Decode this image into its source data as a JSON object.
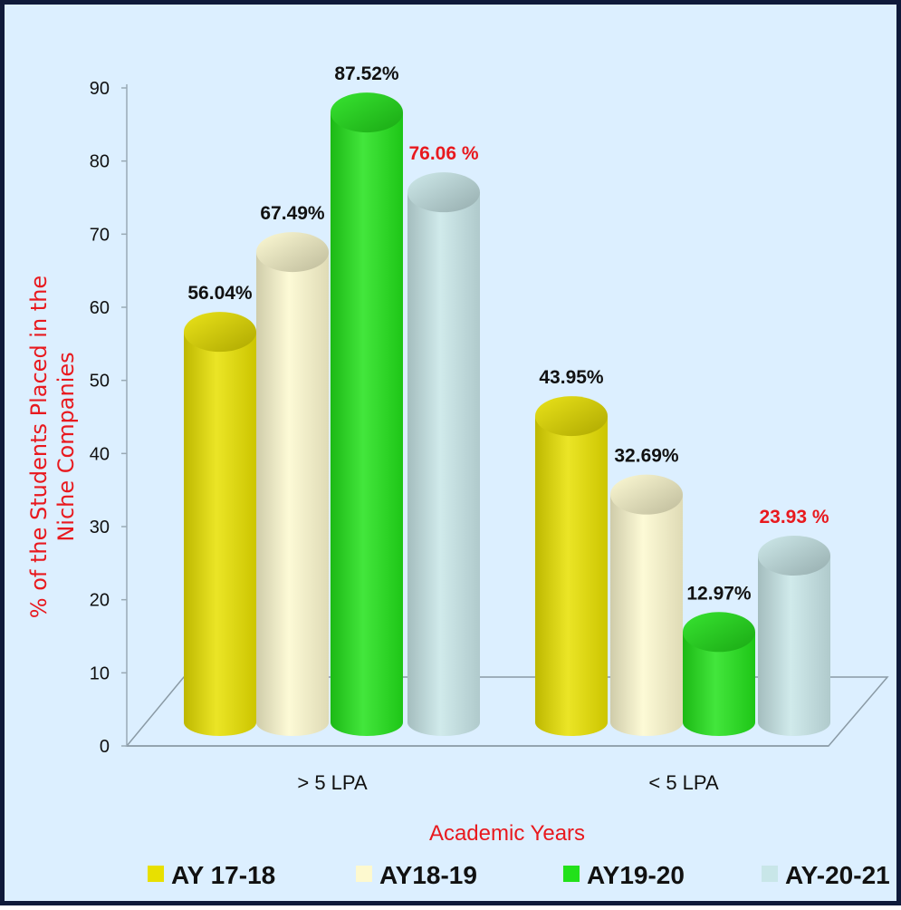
{
  "chart_data": {
    "type": "bar",
    "categories": [
      "> 5 LPA",
      "< 5 LPA"
    ],
    "series": [
      {
        "name": "AY 17-18",
        "values": [
          56.04,
          43.95
        ],
        "labels": [
          "56.04%",
          "43.95%"
        ],
        "color": "#e8e000",
        "label_color": "#111111"
      },
      {
        "name": "AY18-19",
        "values": [
          67.49,
          32.69
        ],
        "labels": [
          "67.49%",
          "32.69%"
        ],
        "color": "#fdf9cf",
        "label_color": "#111111"
      },
      {
        "name": "AY19-20",
        "values": [
          87.52,
          12.97
        ],
        "labels": [
          "87.52%",
          "12.97%"
        ],
        "color": "#22e11a",
        "label_color": "#111111"
      },
      {
        "name": "AY-20-21",
        "values": [
          76.06,
          23.93
        ],
        "labels": [
          "76.06  %",
          "23.93 %"
        ],
        "color": "#c8e6e8",
        "label_color": "#e8191e"
      }
    ],
    "yticks": [
      0,
      10,
      20,
      30,
      40,
      50,
      60,
      70,
      80,
      90
    ],
    "ylim": [
      0,
      90
    ],
    "ylabel_lines": [
      "% of the Students Placed in the",
      "Niche Companies"
    ],
    "xlabel": "Academic Years",
    "grid": false,
    "legend_position": "bottom",
    "style": "3d-cylinder"
  }
}
